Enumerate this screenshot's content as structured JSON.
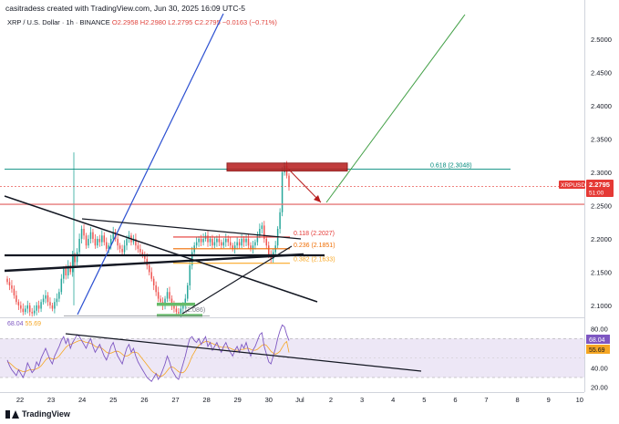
{
  "header": {
    "credit": "casitradess created with TradingView.com, Jun 30, 2025 16:09 UTC-5",
    "symbol_line": "XRP / U.S. Dollar · 1h · BINANCE",
    "ohlc": "O2.2958 H2.2980 L2.2795 C2.2795 −0.0163 (−0.71%)"
  },
  "price_badge": {
    "symbol": "XRPUSD",
    "price": "2.2795",
    "countdown": "51:00"
  },
  "rsi": {
    "value1": "68.04",
    "value2": "55.69",
    "badge1": "68.04",
    "badge2": "55.69"
  },
  "footer": {
    "brand": "TradingView"
  },
  "colors": {
    "candle_up": "#26a69a",
    "candle_down": "#ef5350",
    "blue_line": "#2b4fd1",
    "green_projection": "#43a047",
    "red_arrow": "#b71c1c",
    "rsi_line": "#7e57c2",
    "rsi_ma": "#f5a623",
    "rsi_band": "#ede7f6"
  },
  "chart_data": {
    "type": "candlestick",
    "y_axis_labels": [
      "2.5000",
      "2.4500",
      "2.4000",
      "2.3500",
      "2.3000",
      "2.2500",
      "2.2000",
      "2.1500",
      "2.1000"
    ],
    "ylim": [
      2.082,
      2.54
    ],
    "x_axis_labels": [
      "22",
      "23",
      "24",
      "25",
      "26",
      "27",
      "28",
      "29",
      "30",
      "Jul",
      "2",
      "3",
      "4",
      "5",
      "6",
      "7",
      "8",
      "9",
      "10"
    ],
    "fib_levels": [
      {
        "label": "0.618 (2.3048)",
        "value": 2.3048,
        "color": "#00897b"
      },
      {
        "label": "0.118 (2.2027)",
        "value": 2.2027,
        "color": "#e53935"
      },
      {
        "label": "0.236 (2.1851)",
        "value": 2.1851,
        "color": "#ef6c00"
      },
      {
        "label": "0.382 (2.1633)",
        "value": 2.1633,
        "color": "#f9a825"
      }
    ],
    "low_label": "(2.086)",
    "rsi_axis_labels": [
      "80.00",
      "40.00",
      "20.00"
    ],
    "rsi_ylim": [
      15,
      90
    ],
    "close": [
      2.135,
      2.13,
      2.125,
      2.115,
      2.105,
      2.1,
      2.095,
      2.09,
      2.095,
      2.1,
      2.09,
      2.088,
      2.092,
      2.1,
      2.095,
      2.105,
      2.11,
      2.115,
      2.105,
      2.1,
      2.095,
      2.105,
      2.11,
      2.12,
      2.14,
      2.155,
      2.145,
      2.16,
      2.15,
      2.175,
      2.165,
      2.18,
      2.2,
      2.215,
      2.205,
      2.19,
      2.2,
      2.21,
      2.2,
      2.19,
      2.2,
      2.195,
      2.205,
      2.195,
      2.185,
      2.19,
      2.2,
      2.21,
      2.2,
      2.19,
      2.185,
      2.18,
      2.19,
      2.2,
      2.205,
      2.195,
      2.2,
      2.19,
      2.185,
      2.18,
      2.175,
      2.17,
      2.16,
      2.15,
      2.14,
      2.13,
      2.12,
      2.11,
      2.105,
      2.1,
      2.11,
      2.12,
      2.11,
      2.1,
      2.095,
      2.09,
      2.088,
      2.095,
      2.1,
      2.11,
      2.13,
      2.16,
      2.18,
      2.19,
      2.195,
      2.2,
      2.195,
      2.2,
      2.205,
      2.195,
      2.2,
      2.19,
      2.195,
      2.2,
      2.195,
      2.19,
      2.195,
      2.2,
      2.195,
      2.19,
      2.185,
      2.19,
      2.195,
      2.19,
      2.2,
      2.195,
      2.2,
      2.19,
      2.185,
      2.19,
      2.195,
      2.205,
      2.215,
      2.22,
      2.2,
      2.19,
      2.175,
      2.17,
      2.18,
      2.19,
      2.215,
      2.24,
      2.3,
      2.31,
      2.295,
      2.2795
    ],
    "rsi_values": [
      48,
      42,
      38,
      35,
      32,
      38,
      34,
      30,
      36,
      45,
      40,
      35,
      38,
      46,
      42,
      50,
      55,
      60,
      54,
      48,
      44,
      52,
      57,
      62,
      68,
      72,
      65,
      70,
      60,
      66,
      70,
      74,
      72,
      68,
      64,
      60,
      66,
      70,
      62,
      56,
      60,
      64,
      58,
      52,
      48,
      54,
      62,
      66,
      58,
      52,
      48,
      44,
      52,
      60,
      64,
      56,
      60,
      52,
      46,
      42,
      38,
      34,
      30,
      28,
      26,
      30,
      34,
      28,
      32,
      38,
      44,
      52,
      46,
      38,
      34,
      30,
      28,
      36,
      44,
      52,
      62,
      70,
      72,
      68,
      66,
      70,
      64,
      68,
      72,
      62,
      66,
      58,
      62,
      66,
      60,
      56,
      62,
      66,
      60,
      56,
      52,
      58,
      62,
      56,
      64,
      60,
      66,
      58,
      52,
      58,
      62,
      68,
      74,
      76,
      62,
      54,
      46,
      44,
      52,
      60,
      70,
      78,
      84,
      82,
      74,
      68.04
    ],
    "rsi_ma_values": [
      46,
      45,
      43,
      41,
      39,
      38,
      37,
      36,
      36,
      37,
      38,
      38,
      38,
      39,
      40,
      42,
      45,
      48,
      50,
      50,
      49,
      49,
      50,
      52,
      55,
      58,
      61,
      63,
      64,
      65,
      66,
      67,
      68,
      68,
      67,
      66,
      66,
      65,
      64,
      62,
      61,
      61,
      60,
      58,
      56,
      55,
      55,
      56,
      57,
      57,
      56,
      54,
      52,
      52,
      53,
      55,
      56,
      56,
      55,
      52,
      49,
      46,
      43,
      40,
      37,
      35,
      34,
      32,
      31,
      32,
      34,
      37,
      40,
      41,
      40,
      38,
      36,
      35,
      35,
      37,
      41,
      46,
      52,
      56,
      60,
      63,
      65,
      66,
      67,
      67,
      66,
      65,
      64,
      63,
      62,
      61,
      61,
      61,
      61,
      60,
      59,
      58,
      58,
      58,
      59,
      59,
      60,
      60,
      59,
      58,
      58,
      59,
      61,
      63,
      64,
      63,
      60,
      57,
      55,
      54,
      55,
      57,
      61,
      65,
      67,
      55.69
    ]
  }
}
